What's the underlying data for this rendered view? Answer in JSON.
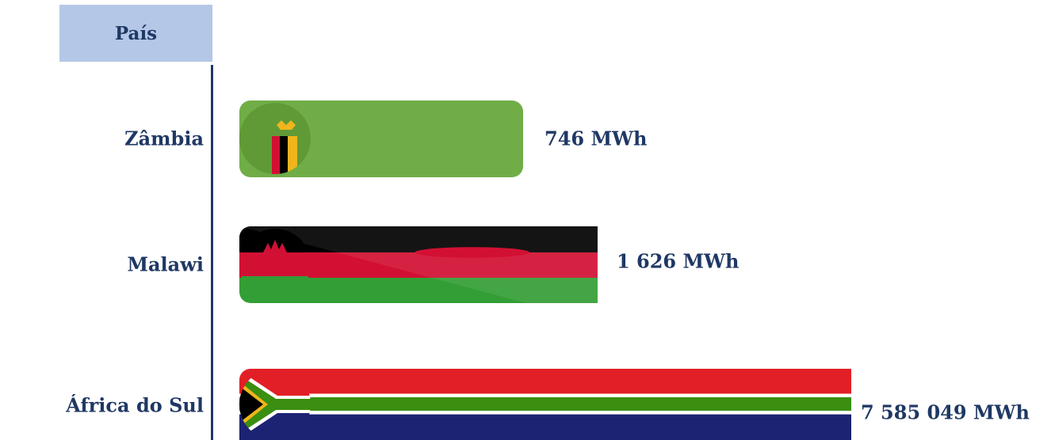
{
  "header": {
    "title": "País"
  },
  "chart_data": {
    "type": "bar",
    "orientation": "horizontal",
    "categories": [
      "Zâmbia",
      "Malawi",
      "África do Sul"
    ],
    "values": [
      746,
      1626,
      7585049
    ],
    "unit": "MWh",
    "value_labels": [
      "746 MWh",
      "1 626 MWh",
      "7 585 049 MWh"
    ],
    "category_axis_title": "País",
    "colors": {
      "zambia": "#70ad47",
      "malawi_red": "#d21034",
      "malawi_green": "#339e35",
      "africa_red": "#e21f26",
      "africa_green": "#3a8e10",
      "africa_blue": "#1c2372",
      "text": "#1f3864",
      "header_bg": "#b4c7e7"
    }
  }
}
